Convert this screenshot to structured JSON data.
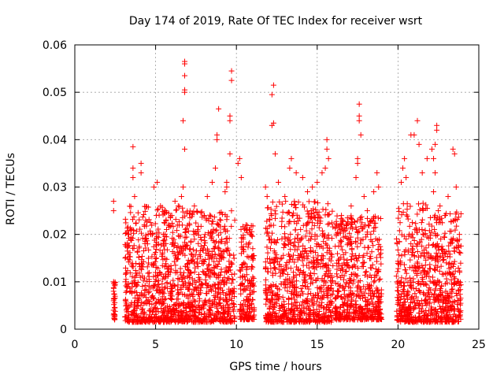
{
  "chart_data": {
    "type": "scatter",
    "title": "Day 174 of 2019, Rate Of TEC Index for receiver wsrt",
    "xlabel": "GPS time / hours",
    "ylabel": "ROTI / TECUs",
    "xlim": [
      0,
      25
    ],
    "ylim": [
      0,
      0.06
    ],
    "xticks": [
      "0",
      "5",
      "10",
      "15",
      "20",
      "25"
    ],
    "yticks": [
      "0",
      "0.01",
      "0.02",
      "0.03",
      "0.04",
      "0.05",
      "0.06"
    ],
    "grid": true,
    "marker": "+",
    "color": "#ff0000",
    "series": [
      {
        "name": "ROTI",
        "points": [
          [
            2.4,
            0.027
          ],
          [
            2.4,
            0.025
          ],
          [
            2.4,
            0.01
          ],
          [
            2.4,
            0.008
          ],
          [
            2.4,
            0.006
          ],
          [
            2.4,
            0.004
          ],
          [
            2.4,
            0.003
          ],
          [
            3.6,
            0.0385
          ],
          [
            3.6,
            0.034
          ],
          [
            3.6,
            0.032
          ],
          [
            3.7,
            0.028
          ],
          [
            4.1,
            0.035
          ],
          [
            4.1,
            0.033
          ],
          [
            4.3,
            0.022
          ],
          [
            4.5,
            0.018
          ],
          [
            4.7,
            0.02
          ],
          [
            4.9,
            0.03
          ],
          [
            5.1,
            0.031
          ],
          [
            5.3,
            0.026
          ],
          [
            5.6,
            0.025
          ],
          [
            5.8,
            0.022
          ],
          [
            6.0,
            0.024
          ],
          [
            6.2,
            0.027
          ],
          [
            6.4,
            0.026
          ],
          [
            6.8,
            0.0565
          ],
          [
            6.8,
            0.056
          ],
          [
            6.8,
            0.0535
          ],
          [
            6.8,
            0.0505
          ],
          [
            6.8,
            0.05
          ],
          [
            6.7,
            0.044
          ],
          [
            6.8,
            0.038
          ],
          [
            6.7,
            0.03
          ],
          [
            6.6,
            0.028
          ],
          [
            7.1,
            0.022
          ],
          [
            7.4,
            0.026
          ],
          [
            7.6,
            0.021
          ],
          [
            8.0,
            0.024
          ],
          [
            8.2,
            0.028
          ],
          [
            8.5,
            0.031
          ],
          [
            8.7,
            0.034
          ],
          [
            8.8,
            0.041
          ],
          [
            8.8,
            0.04
          ],
          [
            8.9,
            0.0465
          ],
          [
            9.3,
            0.029
          ],
          [
            9.4,
            0.031
          ],
          [
            9.6,
            0.044
          ],
          [
            9.6,
            0.045
          ],
          [
            9.7,
            0.0545
          ],
          [
            9.7,
            0.0525
          ],
          [
            9.6,
            0.037
          ],
          [
            9.4,
            0.03
          ],
          [
            10.1,
            0.035
          ],
          [
            10.2,
            0.036
          ],
          [
            10.3,
            0.032
          ],
          [
            10.6,
            0.022
          ],
          [
            10.8,
            0.021
          ],
          [
            10.9,
            0.02
          ],
          [
            11.8,
            0.03
          ],
          [
            11.9,
            0.028
          ],
          [
            12.3,
            0.0515
          ],
          [
            12.2,
            0.0495
          ],
          [
            12.3,
            0.0435
          ],
          [
            12.2,
            0.043
          ],
          [
            12.4,
            0.037
          ],
          [
            12.6,
            0.031
          ],
          [
            13.0,
            0.028
          ],
          [
            13.3,
            0.034
          ],
          [
            13.4,
            0.036
          ],
          [
            13.7,
            0.033
          ],
          [
            14.1,
            0.032
          ],
          [
            14.4,
            0.029
          ],
          [
            14.7,
            0.03
          ],
          [
            15.0,
            0.031
          ],
          [
            15.3,
            0.033
          ],
          [
            15.6,
            0.04
          ],
          [
            15.6,
            0.038
          ],
          [
            15.7,
            0.036
          ],
          [
            15.5,
            0.034
          ],
          [
            16.2,
            0.022
          ],
          [
            16.5,
            0.024
          ],
          [
            16.8,
            0.022
          ],
          [
            17.1,
            0.026
          ],
          [
            17.4,
            0.032
          ],
          [
            17.5,
            0.036
          ],
          [
            17.6,
            0.0475
          ],
          [
            17.6,
            0.045
          ],
          [
            17.6,
            0.044
          ],
          [
            17.7,
            0.041
          ],
          [
            17.5,
            0.035
          ],
          [
            17.9,
            0.028
          ],
          [
            18.1,
            0.025
          ],
          [
            18.5,
            0.029
          ],
          [
            18.7,
            0.033
          ],
          [
            18.8,
            0.03
          ],
          [
            20.2,
            0.031
          ],
          [
            20.3,
            0.034
          ],
          [
            20.4,
            0.036
          ],
          [
            20.5,
            0.032
          ],
          [
            20.8,
            0.041
          ],
          [
            21.0,
            0.041
          ],
          [
            21.2,
            0.044
          ],
          [
            21.3,
            0.039
          ],
          [
            21.5,
            0.033
          ],
          [
            21.8,
            0.036
          ],
          [
            22.1,
            0.038
          ],
          [
            22.2,
            0.036
          ],
          [
            22.3,
            0.039
          ],
          [
            22.4,
            0.043
          ],
          [
            22.4,
            0.042
          ],
          [
            22.3,
            0.033
          ],
          [
            22.2,
            0.029
          ],
          [
            22.6,
            0.026
          ],
          [
            22.9,
            0.024
          ],
          [
            23.1,
            0.028
          ],
          [
            23.4,
            0.038
          ],
          [
            23.5,
            0.037
          ],
          [
            23.6,
            0.03
          ],
          [
            23.8,
            0.02
          ]
        ]
      }
    ],
    "dense_bands": [
      {
        "x_range": [
          2.4,
          2.5
        ],
        "y_range": [
          0.002,
          0.01
        ]
      },
      {
        "x_range": [
          3.1,
          6.7
        ],
        "y_range": [
          0.0015,
          0.026
        ]
      },
      {
        "x_range": [
          6.6,
          9.9
        ],
        "y_range": [
          0.0015,
          0.025
        ]
      },
      {
        "x_range": [
          10.2,
          11.1
        ],
        "y_range": [
          0.002,
          0.022
        ]
      },
      {
        "x_range": [
          11.8,
          13.5
        ],
        "y_range": [
          0.0015,
          0.027
        ]
      },
      {
        "x_range": [
          13.5,
          16.0
        ],
        "y_range": [
          0.0015,
          0.027
        ]
      },
      {
        "x_range": [
          16.1,
          19.0
        ],
        "y_range": [
          0.002,
          0.024
        ]
      },
      {
        "x_range": [
          19.9,
          21.9
        ],
        "y_range": [
          0.0015,
          0.027
        ]
      },
      {
        "x_range": [
          21.9,
          23.9
        ],
        "y_range": [
          0.0015,
          0.025
        ]
      }
    ]
  }
}
